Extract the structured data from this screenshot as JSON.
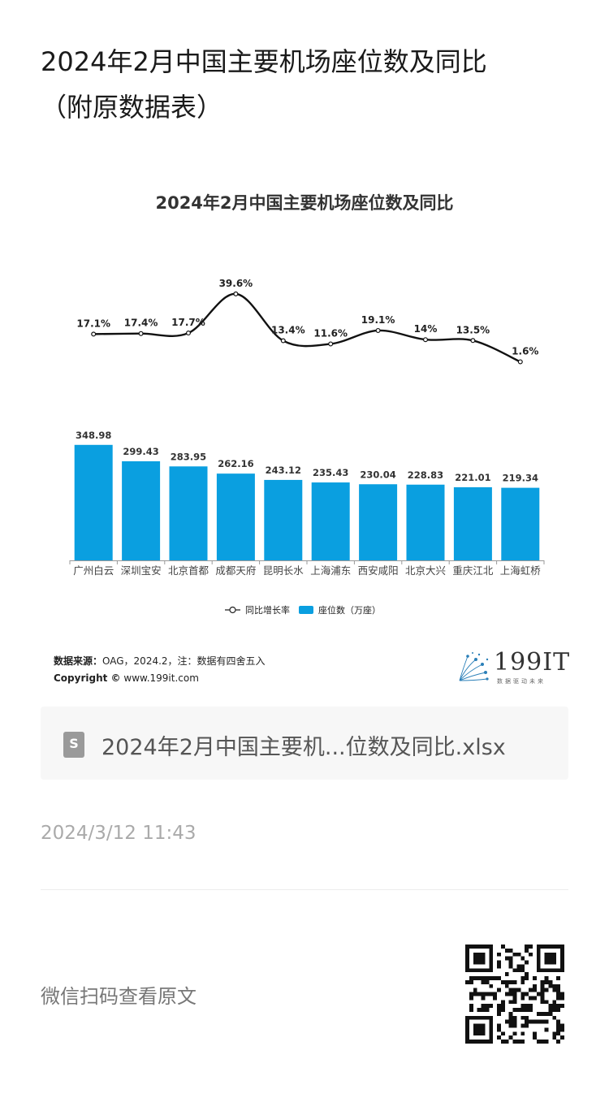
{
  "article": {
    "title_line1": "2024年2月中国主要机场座位数及同比",
    "title_line2": "（附原数据表）"
  },
  "chart_data": {
    "type": "bar",
    "title": "2024年2月中国主要机场座位数及同比",
    "categories": [
      "广州白云",
      "深圳宝安",
      "北京首都",
      "成都天府",
      "昆明长水",
      "上海浦东",
      "西安咸阳",
      "北京大兴",
      "重庆江北",
      "上海虹桥"
    ],
    "series": [
      {
        "name": "座位数（万座）",
        "kind": "bar",
        "color": "#0a9fe0",
        "values": [
          348.98,
          299.43,
          283.95,
          262.16,
          243.12,
          235.43,
          230.04,
          228.83,
          221.01,
          219.34
        ],
        "labels": [
          "348.98",
          "299.43",
          "283.95",
          "262.16",
          "243.12",
          "235.43",
          "230.04",
          "228.83",
          "221.01",
          "219.34"
        ]
      },
      {
        "name": "同比增长率",
        "kind": "line",
        "color": "#111111",
        "values": [
          17.1,
          17.4,
          17.7,
          39.6,
          13.4,
          11.6,
          19.1,
          14,
          13.5,
          1.6
        ],
        "labels": [
          "17.1%",
          "17.4%",
          "17.7%",
          "39.6%",
          "13.4%",
          "11.6%",
          "19.1%",
          "14%",
          "13.5%",
          "1.6%"
        ]
      }
    ],
    "legend_position": "bottom",
    "grid": false
  },
  "source": {
    "label": "数据来源：",
    "text": "OAG，2024.2，注：数据有四舍五入",
    "copyright_label": "Copyright ©",
    "copyright_text": "www.199it.com"
  },
  "brand": {
    "name": "199IT",
    "tagline": "数据驱动未来"
  },
  "attachment": {
    "file_name": "2024年2月中国主要机...位数及同比.xlsx",
    "icon": "spreadsheet-file-icon"
  },
  "post": {
    "time": "2024/3/12 11:43"
  },
  "footer": {
    "qr_hint": "微信扫码查看原文",
    "qr_icon": "qr-code-icon"
  }
}
